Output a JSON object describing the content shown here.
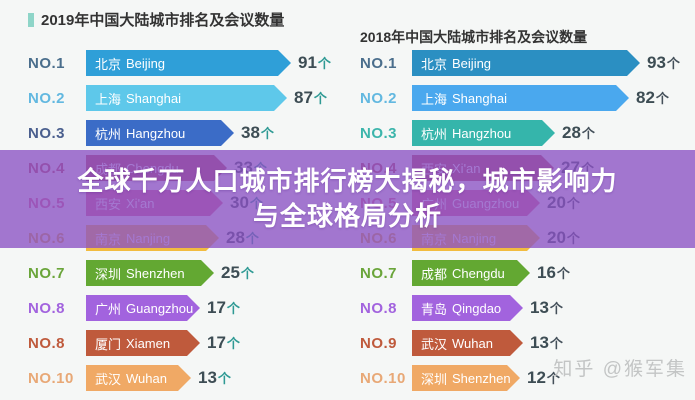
{
  "page": {
    "background": "#f5f7f6",
    "watermark": "知乎 @猴军集"
  },
  "overlay": {
    "line1": "全球千万人口城市排行榜大揭秘，城市影响力",
    "line2": "与全球格局分析",
    "background": "#8b52c4",
    "text_color": "#ffffff"
  },
  "chart_data": [
    {
      "type": "bar",
      "title": "2019年中国大陆城市排名及会议数量",
      "accent_color": "#8ed5c8",
      "unit": "个",
      "unit_color": "#2f9a94",
      "value_color": "#3d4d54",
      "legend_position": "none",
      "grid": false,
      "rows": [
        {
          "rank": "NO.1",
          "city_zh": "北京",
          "city_en": "Beijing",
          "value": 91,
          "color": "#2f9fd8",
          "label_color": "#4a6e8c"
        },
        {
          "rank": "NO.2",
          "city_zh": "上海",
          "city_en": "Shanghai",
          "value": 87,
          "color": "#5ec8ea",
          "label_color": "#62b8e0"
        },
        {
          "rank": "NO.3",
          "city_zh": "杭州",
          "city_en": "Hangzhou",
          "value": 38,
          "color": "#3b6cc7",
          "label_color": "#4a5f8e"
        },
        {
          "rank": "NO.4",
          "city_zh": "成都",
          "city_en": "Chengdu",
          "value": 33,
          "color": "#b5485d",
          "label_color": "#b5485d"
        },
        {
          "rank": "NO.5",
          "city_zh": "西安",
          "city_en": "Xi'an",
          "value": 30,
          "color": "#d9608c",
          "label_color": "#d9608c"
        },
        {
          "rank": "NO.6",
          "city_zh": "南京",
          "city_en": "Nanjing",
          "value": 28,
          "color": "#f2bc3f",
          "label_color": "#d8a83c"
        },
        {
          "rank": "NO.7",
          "city_zh": "深圳",
          "city_en": "Shenzhen",
          "value": 25,
          "color": "#63a832",
          "label_color": "#6aa53a"
        },
        {
          "rank": "NO.8",
          "city_zh": "广州",
          "city_en": "Guangzhou",
          "value": 17,
          "color": "#a263de",
          "label_color": "#a263de"
        },
        {
          "rank": "NO.8",
          "city_zh": "厦门",
          "city_en": "Xiamen",
          "value": 17,
          "color": "#bf5a3c",
          "label_color": "#bf5a3c"
        },
        {
          "rank": "NO.10",
          "city_zh": "武汉",
          "city_en": "Wuhan",
          "value": 13,
          "color": "#f0a965",
          "label_color": "#e8a876"
        }
      ]
    },
    {
      "type": "bar",
      "title": "2018年中国大陆城市排名及会议数量",
      "accent_color": "",
      "unit": "个",
      "unit_color": "#44505a",
      "value_color": "#3d4d54",
      "legend_position": "none",
      "grid": false,
      "rows": [
        {
          "rank": "NO.1",
          "city_zh": "北京",
          "city_en": "Beijing",
          "value": 93,
          "color": "#2b8fc2",
          "label_color": "#4a6e8c"
        },
        {
          "rank": "NO.2",
          "city_zh": "上海",
          "city_en": "Shanghai",
          "value": 82,
          "color": "#4aa8ee",
          "label_color": "#62b8e0"
        },
        {
          "rank": "NO.3",
          "city_zh": "杭州",
          "city_en": "Hangzhou",
          "value": 28,
          "color": "#35b5ab",
          "label_color": "#3cb5ab"
        },
        {
          "rank": "NO.4",
          "city_zh": "西安",
          "city_en": "Xi'an",
          "value": 27,
          "color": "#b5485d",
          "label_color": "#b5485d"
        },
        {
          "rank": "NO.5",
          "city_zh": "广州",
          "city_en": "Guangzhou",
          "value": 20,
          "color": "#d9608c",
          "label_color": "#d9608c"
        },
        {
          "rank": "NO.6",
          "city_zh": "南京",
          "city_en": "Nanjing",
          "value": 20,
          "color": "#f2bc3f",
          "label_color": "#d8a83c"
        },
        {
          "rank": "NO.7",
          "city_zh": "成都",
          "city_en": "Chengdu",
          "value": 16,
          "color": "#63a832",
          "label_color": "#6aa53a"
        },
        {
          "rank": "NO.8",
          "city_zh": "青岛",
          "city_en": "Qingdao",
          "value": 13,
          "color": "#a263de",
          "label_color": "#a263de"
        },
        {
          "rank": "NO.9",
          "city_zh": "武汉",
          "city_en": "Wuhan",
          "value": 13,
          "color": "#bf5a3c",
          "label_color": "#bf5a3c"
        },
        {
          "rank": "NO.10",
          "city_zh": "深圳",
          "city_en": "Shenzhen",
          "value": 12,
          "color": "#f0a965",
          "label_color": "#e8a876"
        }
      ]
    }
  ]
}
